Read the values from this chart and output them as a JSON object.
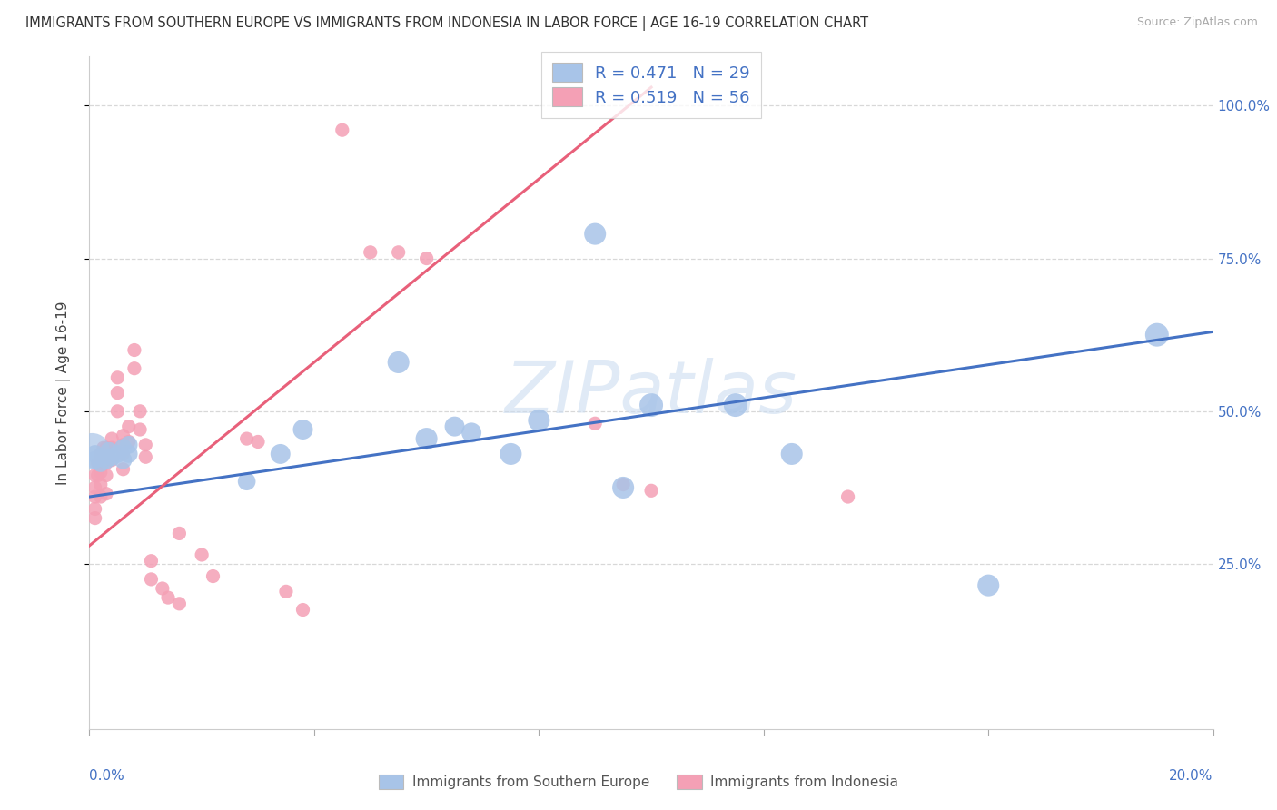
{
  "title": "IMMIGRANTS FROM SOUTHERN EUROPE VS IMMIGRANTS FROM INDONESIA IN LABOR FORCE | AGE 16-19 CORRELATION CHART",
  "source": "Source: ZipAtlas.com",
  "ylabel": "In Labor Force | Age 16-19",
  "legend_blue_R": "R = 0.471",
  "legend_blue_N": "N = 29",
  "legend_pink_R": "R = 0.519",
  "legend_pink_N": "N = 56",
  "blue_color": "#a8c4e8",
  "blue_line_color": "#4472c4",
  "pink_color": "#f4a0b5",
  "pink_line_color": "#e8607a",
  "watermark": "ZIPatlas",
  "blue_label": "Immigrants from Southern Europe",
  "pink_label": "Immigrants from Indonesia",
  "blue_scatter_x": [
    0.0005,
    0.001,
    0.001,
    0.002,
    0.002,
    0.003,
    0.0035,
    0.004,
    0.005,
    0.006,
    0.006,
    0.007,
    0.007,
    0.028,
    0.034,
    0.038,
    0.055,
    0.06,
    0.065,
    0.068,
    0.075,
    0.08,
    0.09,
    0.095,
    0.1,
    0.115,
    0.125,
    0.16,
    0.19
  ],
  "blue_scatter_y": [
    0.435,
    0.43,
    0.42,
    0.425,
    0.415,
    0.42,
    0.435,
    0.425,
    0.43,
    0.42,
    0.44,
    0.445,
    0.43,
    0.385,
    0.43,
    0.47,
    0.58,
    0.455,
    0.475,
    0.465,
    0.43,
    0.485,
    0.79,
    0.375,
    0.51,
    0.51,
    0.43,
    0.215,
    0.625
  ],
  "blue_scatter_size_raw": [
    800,
    200,
    200,
    200,
    200,
    200,
    200,
    200,
    200,
    200,
    200,
    200,
    200,
    200,
    250,
    250,
    300,
    300,
    250,
    250,
    300,
    300,
    300,
    300,
    350,
    350,
    300,
    300,
    350
  ],
  "pink_scatter_x": [
    0.001,
    0.001,
    0.001,
    0.001,
    0.001,
    0.0015,
    0.0015,
    0.002,
    0.002,
    0.002,
    0.002,
    0.002,
    0.0025,
    0.003,
    0.003,
    0.003,
    0.003,
    0.003,
    0.004,
    0.004,
    0.004,
    0.005,
    0.005,
    0.005,
    0.006,
    0.006,
    0.006,
    0.006,
    0.007,
    0.007,
    0.008,
    0.008,
    0.009,
    0.009,
    0.01,
    0.01,
    0.011,
    0.011,
    0.013,
    0.014,
    0.016,
    0.016,
    0.02,
    0.022,
    0.028,
    0.03,
    0.035,
    0.038,
    0.045,
    0.05,
    0.055,
    0.06,
    0.09,
    0.095,
    0.1,
    0.135
  ],
  "pink_scatter_y": [
    0.395,
    0.375,
    0.36,
    0.34,
    0.325,
    0.415,
    0.395,
    0.43,
    0.415,
    0.4,
    0.38,
    0.36,
    0.44,
    0.44,
    0.43,
    0.415,
    0.395,
    0.365,
    0.455,
    0.44,
    0.42,
    0.555,
    0.53,
    0.5,
    0.46,
    0.445,
    0.43,
    0.405,
    0.475,
    0.45,
    0.6,
    0.57,
    0.5,
    0.47,
    0.445,
    0.425,
    0.255,
    0.225,
    0.21,
    0.195,
    0.185,
    0.3,
    0.265,
    0.23,
    0.455,
    0.45,
    0.205,
    0.175,
    0.96,
    0.76,
    0.76,
    0.75,
    0.48,
    0.38,
    0.37,
    0.36
  ],
  "xlim": [
    0.0,
    0.2
  ],
  "ylim": [
    -0.02,
    1.08
  ],
  "yticks": [
    0.25,
    0.5,
    0.75,
    1.0
  ],
  "ytick_labels": [
    "25.0%",
    "50.0%",
    "75.0%",
    "100.0%"
  ],
  "xtick_positions": [
    0.0,
    0.04,
    0.08,
    0.12,
    0.16,
    0.2
  ],
  "grid_color": "#d8d8d8",
  "blue_trend_x": [
    0.0,
    0.2
  ],
  "blue_trend_y": [
    0.36,
    0.63
  ],
  "pink_trend_x": [
    0.0,
    0.1
  ],
  "pink_trend_y": [
    0.28,
    1.03
  ]
}
